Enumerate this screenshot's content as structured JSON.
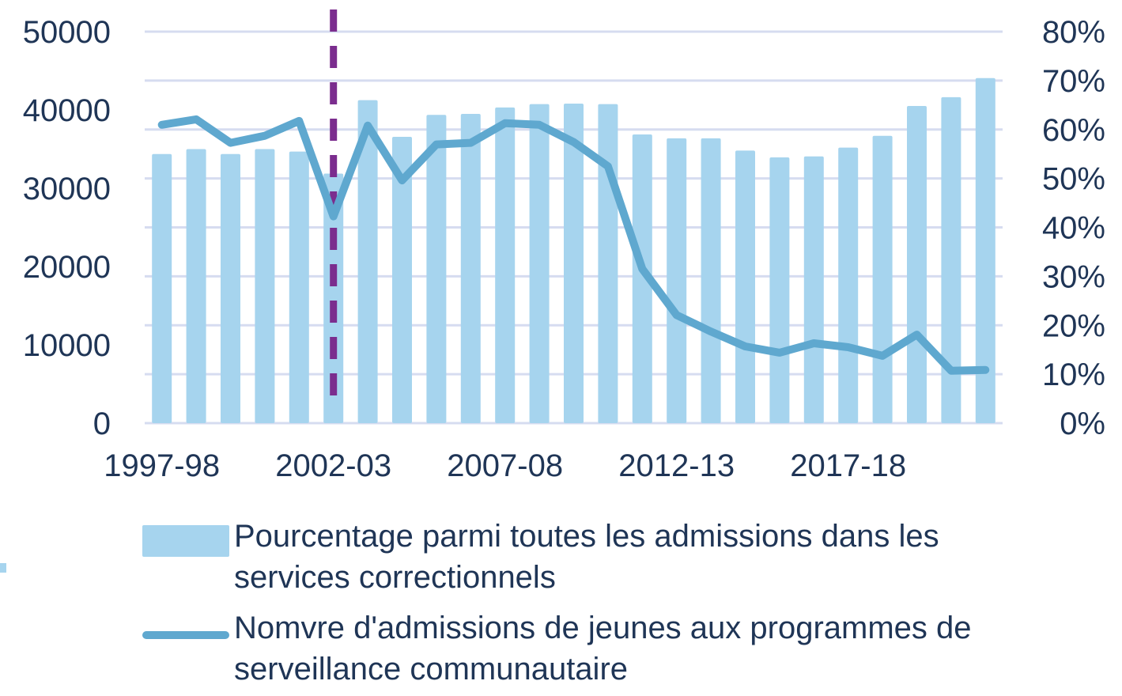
{
  "colors": {
    "bar": "#a6d4ee",
    "line": "#5fa8cf",
    "marker": "#7b2d8e",
    "grid": "#d6dcf0",
    "text": "#1f3556"
  },
  "chart_data": {
    "type": "bar",
    "title": "",
    "xlabel": "",
    "ylabel": "",
    "x_tick_labels": [
      "1997-98",
      "2002-03",
      "2007-08",
      "2012-13",
      "2017-18"
    ],
    "categories": [
      "1997-98",
      "1998-99",
      "1999-00",
      "2000-01",
      "2001-02",
      "2002-03",
      "2003-04",
      "2004-05",
      "2005-06",
      "2006-07",
      "2007-08",
      "2008-09",
      "2009-10",
      "2010-11",
      "2011-12",
      "2012-13",
      "2013-14",
      "2014-15",
      "2015-16",
      "2016-17",
      "2017-18",
      "2018-19",
      "2019-20",
      "2020-21",
      "2021-22"
    ],
    "y_left": {
      "ticks": [
        "0",
        "10000",
        "20000",
        "30000",
        "40000",
        "50000"
      ],
      "range": [
        0,
        50000
      ]
    },
    "y_right": {
      "ticks": [
        "0%",
        "10%",
        "20%",
        "30%",
        "40%",
        "50%",
        "60%",
        "70%",
        "80%"
      ],
      "range": [
        0,
        80
      ]
    },
    "series": [
      {
        "name": "Pourcentage parmi toutes les admissions dans les services correctionnels",
        "type": "bar",
        "axis": "right",
        "values": [
          55,
          56,
          55,
          56,
          55.5,
          51,
          66,
          58.5,
          63,
          63.2,
          64.5,
          65.2,
          65.3,
          65.2,
          59,
          58.2,
          58.2,
          55.7,
          54.3,
          54.5,
          56.3,
          58.7,
          64.8,
          66.6,
          70.5
        ]
      },
      {
        "name": "Nomvre d'admissions de jeunes aux programmes de serveillance communautaire",
        "type": "line",
        "axis": "left",
        "values": [
          38100,
          38800,
          35800,
          36700,
          38600,
          26400,
          38000,
          31000,
          35600,
          35800,
          38300,
          38100,
          35900,
          32800,
          19700,
          13800,
          11700,
          9800,
          9000,
          10200,
          9700,
          8600,
          11300,
          6700,
          6800
        ]
      }
    ],
    "vertical_marker": {
      "category": "2002-03",
      "style": "dashed"
    },
    "grid": true,
    "legend_position": "bottom"
  }
}
